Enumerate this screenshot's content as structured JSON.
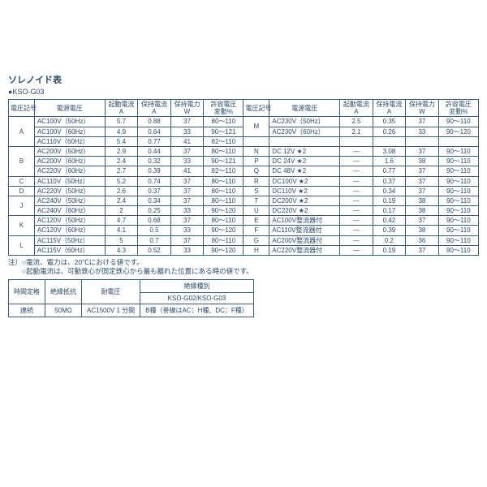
{
  "title": "ソレノイド表",
  "subtitle": "●KSO-G03",
  "table": {
    "headers": [
      "電圧記号",
      "電源電圧",
      "起動電流\nA",
      "保持電流\nA",
      "保持電力\nW",
      "許容電圧\n変動%"
    ],
    "left": [
      {
        "code": "A",
        "rows": [
          [
            "AC100V（50Hz）",
            "5.7",
            "0.88",
            "37",
            "80～110"
          ],
          [
            "AC100V（60Hz）",
            "4.9",
            "0.64",
            "33",
            "90～121"
          ],
          [
            "AC110V（60Hz）",
            "5.4",
            "0.77",
            "41",
            "82～110"
          ]
        ]
      },
      {
        "code": "B",
        "rows": [
          [
            "AC200V（50Hz）",
            "2.9",
            "0.44",
            "37",
            "80～110"
          ],
          [
            "AC200V（60Hz）",
            "2.4",
            "0.32",
            "33",
            "90～121"
          ],
          [
            "AC220V（60Hz）",
            "2.7",
            "0.39",
            "41",
            "82～110"
          ]
        ]
      },
      {
        "code": "C",
        "rows": [
          [
            "AC110V（50Hz）",
            "5.2",
            "0.74",
            "37",
            "80～110"
          ]
        ]
      },
      {
        "code": "D",
        "rows": [
          [
            "AC220V（50Hz）",
            "2.6",
            "0.37",
            "37",
            "80～110"
          ]
        ]
      },
      {
        "code": "J",
        "rows": [
          [
            "AC240V（50Hz）",
            "2.4",
            "0.34",
            "37",
            "80～110"
          ],
          [
            "AC240V（60Hz）",
            "2",
            "0.25",
            "33",
            "90～120"
          ]
        ]
      },
      {
        "code": "K",
        "rows": [
          [
            "AC120V（50Hz）",
            "4.7",
            "0.68",
            "37",
            "80～110"
          ],
          [
            "AC120V（60Hz）",
            "4.1",
            "0.5",
            "33",
            "90～120"
          ]
        ]
      },
      {
        "code": "L",
        "rows": [
          [
            "AC115V（50Hz）",
            "5",
            "0.7",
            "37",
            "80～110"
          ],
          [
            "AC115V（60Hz）",
            "4.3",
            "0.52",
            "33",
            "90～120"
          ]
        ]
      }
    ],
    "right": [
      {
        "code": "M",
        "rows": [
          [
            "AC230V（50Hz）",
            "2.5",
            "0.35",
            "37",
            "90～110"
          ],
          [
            "AC230V（60Hz）",
            "2.1",
            "0.26",
            "33",
            "90～120"
          ]
        ],
        "blanks": 1
      },
      {
        "code": "N",
        "rows": [
          [
            "DC 12V ★2",
            "—",
            "3.08",
            "37",
            "90～110"
          ]
        ]
      },
      {
        "code": "P",
        "rows": [
          [
            "DC 24V ★2",
            "—",
            "1.6",
            "38",
            "90～110"
          ]
        ]
      },
      {
        "code": "Q",
        "rows": [
          [
            "DC 48V ★2",
            "—",
            "0.77",
            "37",
            "90～110"
          ]
        ]
      },
      {
        "code": "R",
        "rows": [
          [
            "DC100V ★2",
            "—",
            "0.37",
            "37",
            "90～110"
          ]
        ]
      },
      {
        "code": "S",
        "rows": [
          [
            "DC110V ★2",
            "—",
            "0.34",
            "37",
            "90～110"
          ]
        ]
      },
      {
        "code": "T",
        "rows": [
          [
            "DC200V ★2",
            "—",
            "0.19",
            "38",
            "90～110"
          ]
        ]
      },
      {
        "code": "U",
        "rows": [
          [
            "DC220V ★2",
            "—",
            "0.17",
            "38",
            "90～110"
          ]
        ]
      },
      {
        "code": "E",
        "rows": [
          [
            "AC100V整流器付",
            "—",
            "0.42",
            "37",
            "90～110"
          ]
        ]
      },
      {
        "code": "F",
        "rows": [
          [
            "AC110V整流器付",
            "—",
            "0.39",
            "38",
            "90～110"
          ]
        ]
      },
      {
        "code": "G",
        "rows": [
          [
            "AC200V整流器付",
            "—",
            "0.2",
            "36",
            "90～110"
          ]
        ]
      },
      {
        "code": "H",
        "rows": [
          [
            "AC220V整流器付",
            "—",
            "0.19",
            "37",
            "90～110"
          ]
        ]
      }
    ]
  },
  "notes": [
    "注）○電流、電力は、20℃における値です。",
    "　　○起動電流は、可動鉄心が固定鉄心から最も離れた位置にある時の値です。"
  ],
  "small_table": {
    "r1": [
      "時間定格",
      "絶縁抵抗",
      "耐電圧",
      "絶縁種別"
    ],
    "r2": "KSO-G02/KSO-G03",
    "r3": [
      "連続",
      "50MΩ",
      "AC1500V 1 分間",
      "B種（巻線はAC：H種、DC：F種）"
    ]
  },
  "colors": {
    "line": "#3a5a7a",
    "text": "#2a4a6a"
  }
}
